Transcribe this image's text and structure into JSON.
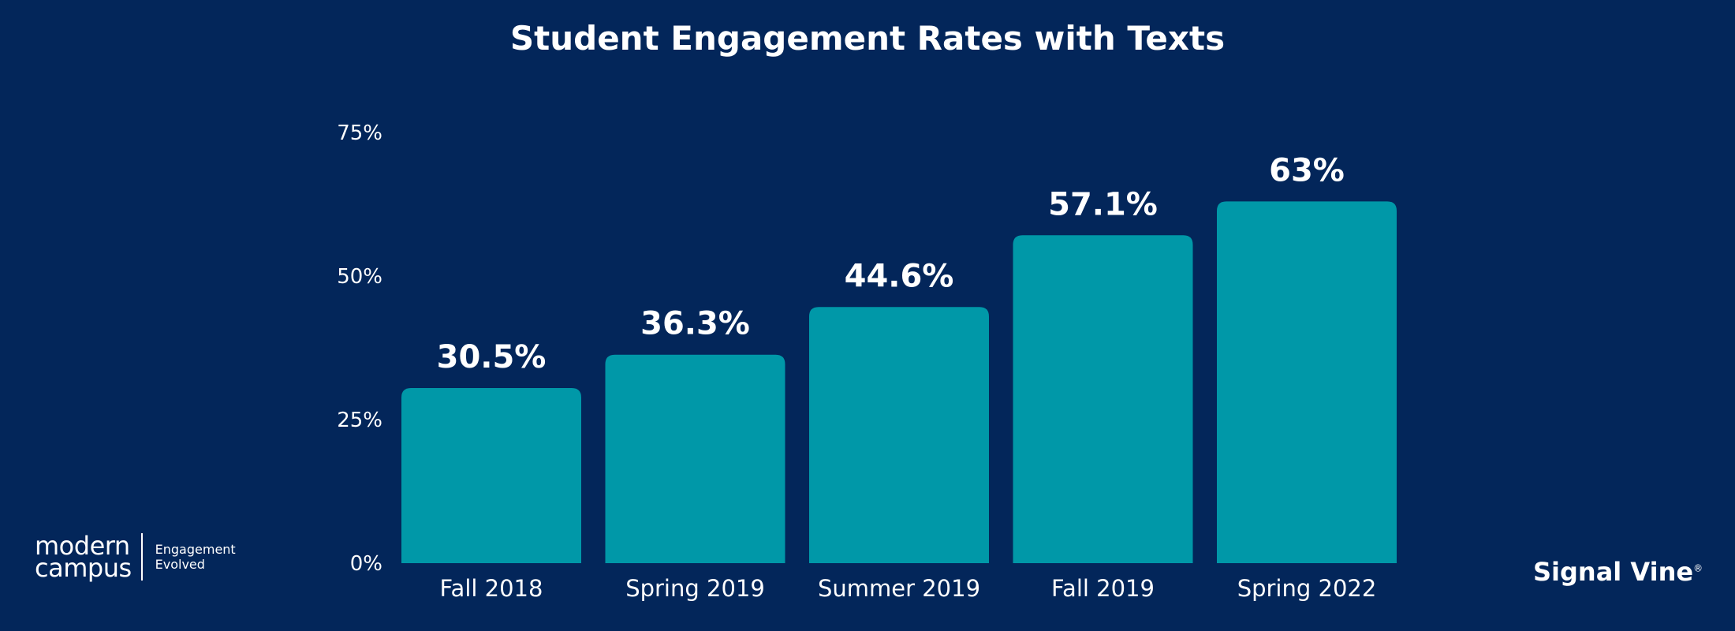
{
  "chart_data": {
    "type": "bar",
    "title": "Student Engagement Rates with Texts",
    "categories": [
      "Fall 2018",
      "Spring 2019",
      "Summer 2019",
      "Fall 2019",
      "Spring 2022"
    ],
    "values": [
      30.5,
      36.3,
      44.6,
      57.1,
      63
    ],
    "value_labels": [
      "30.5%",
      "36.3%",
      "44.6%",
      "57.1%",
      "63%"
    ],
    "yticks": [
      0,
      25,
      50,
      75
    ],
    "ytick_labels": [
      "0%",
      "25%",
      "50%",
      "75%"
    ],
    "ylim": [
      0,
      75
    ],
    "xlabel": "",
    "ylabel": "",
    "grid": false,
    "legend": "none",
    "colors": {
      "background": "#03265a",
      "bar": "#0098a8",
      "text": "#ffffff"
    }
  },
  "logos": {
    "modern_campus": {
      "line1": "modern",
      "line2": "campus",
      "tagline1": "Engagement",
      "tagline2": "Evolved"
    },
    "signal_vine": {
      "text": "Signal Vine"
    }
  }
}
